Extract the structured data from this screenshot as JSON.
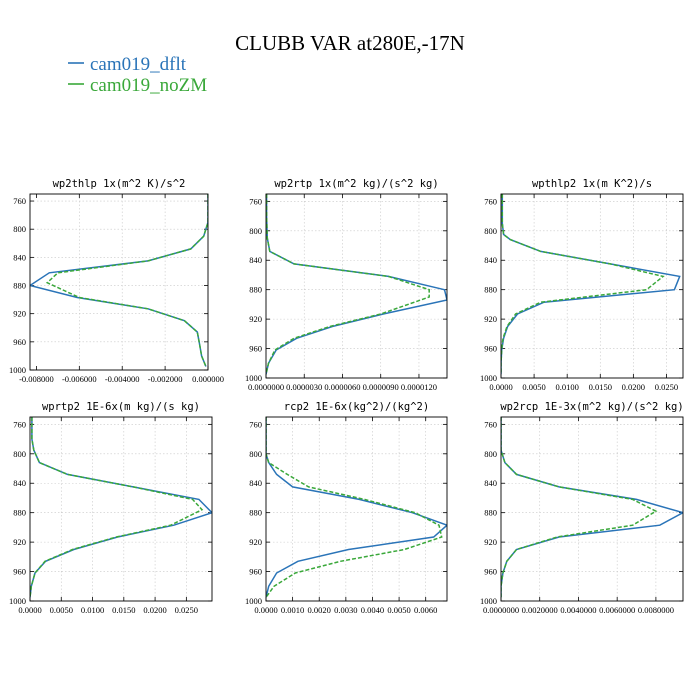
{
  "title": "CLUBB VAR at280E,-17N",
  "legend": {
    "placement": "top-left",
    "entries": [
      {
        "name": "cam019_dflt",
        "color": "#2a74b8",
        "dash": "solid"
      },
      {
        "name": "cam019_noZM",
        "color": "#3aa83a",
        "dash": "dashed"
      }
    ]
  },
  "chart_data": [
    {
      "type": "line",
      "title": "wp2thlp   1x(m^2 K)/s^2",
      "y_ticks": [
        760,
        800,
        840,
        880,
        920,
        960,
        1000
      ],
      "ylim": [
        1000,
        750
      ],
      "x_ticks": [
        "-0.008000",
        "-0.006000",
        "-0.004000",
        "-0.002000",
        "0.000000"
      ],
      "xlim": [
        -0.0083,
        0.0
      ],
      "grid": true,
      "series": [
        {
          "name": "cam019_dflt",
          "points": [
            [
              0.0,
              750
            ],
            [
              0.0,
              790
            ],
            [
              -0.0002,
              810
            ],
            [
              -0.0008,
              828
            ],
            [
              -0.0028,
              845
            ],
            [
              -0.0074,
              862
            ],
            [
              -0.0083,
              880
            ],
            [
              -0.0061,
              897
            ],
            [
              -0.0028,
              913
            ],
            [
              -0.0011,
              930
            ],
            [
              -0.0005,
              946
            ],
            [
              -0.0004,
              962
            ],
            [
              -0.0003,
              980
            ],
            [
              -0.0001,
              995
            ]
          ]
        },
        {
          "name": "cam019_noZM",
          "points": [
            [
              0.0,
              750
            ],
            [
              0.0,
              790
            ],
            [
              -0.0002,
              810
            ],
            [
              -0.0008,
              828
            ],
            [
              -0.0028,
              845
            ],
            [
              -0.007,
              862
            ],
            [
              -0.0075,
              876
            ],
            [
              -0.006,
              897
            ],
            [
              -0.0028,
              913
            ],
            [
              -0.0011,
              930
            ],
            [
              -0.0005,
              946
            ],
            [
              -0.0004,
              962
            ],
            [
              -0.0003,
              980
            ],
            [
              -0.0001,
              995
            ]
          ]
        }
      ]
    },
    {
      "type": "line",
      "title": "wp2rtp   1x(m^2 kg)/(s^2 kg)",
      "y_ticks": [
        760,
        800,
        840,
        880,
        920,
        960,
        1000
      ],
      "ylim": [
        1000,
        750
      ],
      "x_ticks": [
        "0.0000000",
        "0.0000030",
        "0.0000060",
        "0.0000090",
        "0.0000120"
      ],
      "xlim": [
        0.0,
        1.42e-05
      ],
      "grid": true,
      "series": [
        {
          "name": "cam019_dflt",
          "points": [
            [
              5e-08,
              750
            ],
            [
              5e-08,
              780
            ],
            [
              1e-07,
              810
            ],
            [
              3e-07,
              828
            ],
            [
              2.2e-06,
              845
            ],
            [
              9.6e-06,
              862
            ],
            [
              1.4e-05,
              880
            ],
            [
              1.42e-05,
              894
            ],
            [
              9.2e-06,
              913
            ],
            [
              5.2e-06,
              930
            ],
            [
              2.4e-06,
              946
            ],
            [
              8e-07,
              962
            ],
            [
              2e-07,
              980
            ],
            [
              0.0,
              995
            ]
          ]
        },
        {
          "name": "cam019_noZM",
          "points": [
            [
              5e-08,
              750
            ],
            [
              5e-08,
              780
            ],
            [
              1e-07,
              810
            ],
            [
              3e-07,
              828
            ],
            [
              2.2e-06,
              845
            ],
            [
              9.6e-06,
              862
            ],
            [
              1.28e-05,
              880
            ],
            [
              1.28e-05,
              890
            ],
            [
              9e-06,
              913
            ],
            [
              5e-06,
              930
            ],
            [
              2.2e-06,
              946
            ],
            [
              7e-07,
              962
            ],
            [
              2e-07,
              980
            ],
            [
              0.0,
              995
            ]
          ]
        }
      ]
    },
    {
      "type": "line",
      "title": "wpthlp2   1x(m K^2)/s",
      "y_ticks": [
        760,
        800,
        840,
        880,
        920,
        960,
        1000
      ],
      "ylim": [
        1000,
        750
      ],
      "x_ticks": [
        "0.0000",
        "0.0050",
        "0.0100",
        "0.0150",
        "0.0200",
        "0.0250"
      ],
      "xlim": [
        0.0,
        0.0275
      ],
      "grid": true,
      "series": [
        {
          "name": "cam019_dflt",
          "points": [
            [
              0.0002,
              750
            ],
            [
              0.0002,
              790
            ],
            [
              0.0004,
              805
            ],
            [
              0.0014,
              812
            ],
            [
              0.006,
              828
            ],
            [
              0.0165,
              845
            ],
            [
              0.027,
              862
            ],
            [
              0.0262,
              880
            ],
            [
              0.0065,
              897
            ],
            [
              0.0025,
              913
            ],
            [
              0.001,
              930
            ],
            [
              0.0004,
              946
            ],
            [
              0.0001,
              962
            ],
            [
              0.0,
              980
            ],
            [
              0.0,
              995
            ]
          ]
        },
        {
          "name": "cam019_noZM",
          "points": [
            [
              0.0002,
              750
            ],
            [
              0.0002,
              790
            ],
            [
              0.0004,
              805
            ],
            [
              0.0014,
              812
            ],
            [
              0.006,
              828
            ],
            [
              0.0165,
              845
            ],
            [
              0.0245,
              862
            ],
            [
              0.022,
              880
            ],
            [
              0.006,
              897
            ],
            [
              0.0022,
              913
            ],
            [
              0.0009,
              930
            ],
            [
              0.0003,
              946
            ],
            [
              0.0001,
              962
            ],
            [
              0.0,
              980
            ],
            [
              0.0,
              995
            ]
          ]
        }
      ]
    },
    {
      "type": "line",
      "title": "wprtp2   1E-6x(m kg)/(s kg)",
      "y_ticks": [
        760,
        800,
        840,
        880,
        920,
        960,
        1000
      ],
      "ylim": [
        1000,
        750
      ],
      "x_ticks": [
        "0.0000",
        "0.0050",
        "0.0100",
        "0.0150",
        "0.0200",
        "0.0250"
      ],
      "xlim": [
        0.0,
        0.0291
      ],
      "grid": true,
      "series": [
        {
          "name": "cam019_dflt",
          "points": [
            [
              0.0003,
              750
            ],
            [
              0.0003,
              780
            ],
            [
              0.0006,
              795
            ],
            [
              0.0015,
              812
            ],
            [
              0.006,
              828
            ],
            [
              0.0165,
              845
            ],
            [
              0.027,
              862
            ],
            [
              0.0291,
              880
            ],
            [
              0.023,
              897
            ],
            [
              0.014,
              913
            ],
            [
              0.007,
              930
            ],
            [
              0.0025,
              946
            ],
            [
              0.0008,
              962
            ],
            [
              0.0002,
              980
            ],
            [
              0.0,
              995
            ]
          ]
        },
        {
          "name": "cam019_noZM",
          "points": [
            [
              0.0003,
              750
            ],
            [
              0.0003,
              780
            ],
            [
              0.0006,
              795
            ],
            [
              0.0015,
              812
            ],
            [
              0.006,
              828
            ],
            [
              0.0165,
              845
            ],
            [
              0.026,
              862
            ],
            [
              0.0275,
              876
            ],
            [
              0.0225,
              897
            ],
            [
              0.0138,
              913
            ],
            [
              0.0068,
              930
            ],
            [
              0.0024,
              946
            ],
            [
              0.0008,
              962
            ],
            [
              0.0002,
              980
            ],
            [
              0.0,
              995
            ]
          ]
        }
      ]
    },
    {
      "type": "line",
      "title": "rcp2   1E-6x(kg^2)/(kg^2)",
      "y_ticks": [
        760,
        800,
        840,
        880,
        920,
        960,
        1000
      ],
      "ylim": [
        1000,
        750
      ],
      "x_ticks": [
        "0.0000",
        "0.0010",
        "0.0020",
        "0.0030",
        "0.0040",
        "0.0050",
        "0.0060"
      ],
      "xlim": [
        0.0,
        0.0068
      ],
      "grid": true,
      "series": [
        {
          "name": "cam019_dflt",
          "points": [
            [
              0.0,
              750
            ],
            [
              0.0,
              800
            ],
            [
              0.0001,
              812
            ],
            [
              0.0004,
              828
            ],
            [
              0.001,
              845
            ],
            [
              0.0035,
              862
            ],
            [
              0.0055,
              880
            ],
            [
              0.0068,
              897
            ],
            [
              0.0063,
              913
            ],
            [
              0.0031,
              930
            ],
            [
              0.0012,
              946
            ],
            [
              0.0004,
              962
            ],
            [
              0.0001,
              980
            ],
            [
              0.0,
              995
            ]
          ]
        },
        {
          "name": "cam019_noZM",
          "points": [
            [
              0.0,
              750
            ],
            [
              0.0,
              800
            ],
            [
              0.0001,
              812
            ],
            [
              0.0008,
              828
            ],
            [
              0.0016,
              845
            ],
            [
              0.0037,
              862
            ],
            [
              0.0056,
              880
            ],
            [
              0.0065,
              897
            ],
            [
              0.0066,
              913
            ],
            [
              0.0052,
              930
            ],
            [
              0.0028,
              946
            ],
            [
              0.0011,
              962
            ],
            [
              0.0003,
              980
            ],
            [
              0.0,
              995
            ]
          ]
        }
      ]
    },
    {
      "type": "line",
      "title": "wp2rcp   1E-3x(m^2 kg)/(s^2 kg)",
      "y_ticks": [
        760,
        800,
        840,
        880,
        920,
        960,
        1000
      ],
      "ylim": [
        1000,
        750
      ],
      "x_ticks": [
        "0.0000000",
        "0.0020000",
        "0.0040000",
        "0.0060000",
        "0.0080000"
      ],
      "xlim": [
        0.0,
        0.0094
      ],
      "grid": true,
      "series": [
        {
          "name": "cam019_dflt",
          "points": [
            [
              0.0,
              750
            ],
            [
              0.0,
              795
            ],
            [
              0.0002,
              812
            ],
            [
              0.0008,
              828
            ],
            [
              0.003,
              845
            ],
            [
              0.007,
              862
            ],
            [
              0.0094,
              880
            ],
            [
              0.0082,
              897
            ],
            [
              0.003,
              913
            ],
            [
              0.0008,
              930
            ],
            [
              0.0003,
              946
            ],
            [
              0.0001,
              962
            ],
            [
              0.0,
              980
            ],
            [
              0.0,
              995
            ]
          ]
        },
        {
          "name": "cam019_noZM",
          "points": [
            [
              0.0,
              750
            ],
            [
              0.0,
              795
            ],
            [
              0.0002,
              812
            ],
            [
              0.0008,
              828
            ],
            [
              0.003,
              845
            ],
            [
              0.0068,
              862
            ],
            [
              0.008,
              878
            ],
            [
              0.0068,
              897
            ],
            [
              0.0029,
              913
            ],
            [
              0.0008,
              930
            ],
            [
              0.0003,
              946
            ],
            [
              0.0001,
              962
            ],
            [
              0.0,
              980
            ],
            [
              0.0,
              995
            ]
          ]
        }
      ]
    }
  ]
}
